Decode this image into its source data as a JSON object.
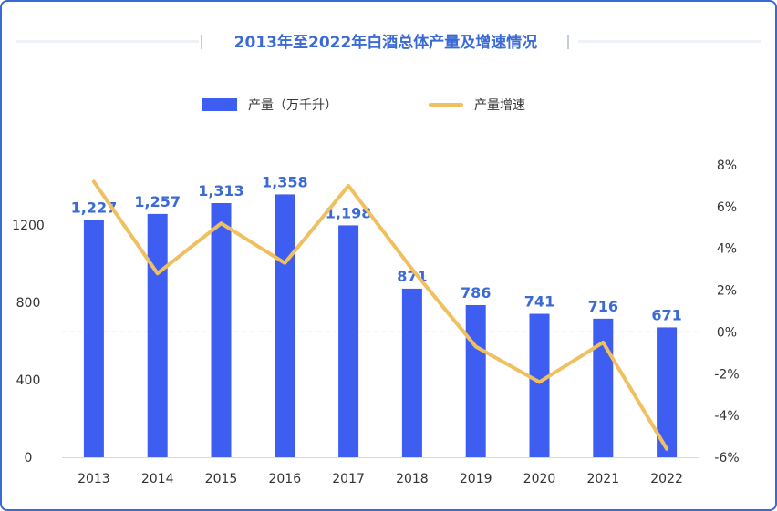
{
  "title": "2013年至2022年白酒总体产量及增速情况",
  "legend": {
    "bar_label": "产量（万千升）",
    "line_label": "产量增速"
  },
  "colors": {
    "border": "#3a6ad6",
    "bar": "#3d5ef0",
    "line": "#f0c060",
    "title": "#3a6ad6"
  },
  "chart_data": {
    "type": "bar+line",
    "title": "2013年至2022年白酒总体产量及增速情况",
    "categories": [
      "2013",
      "2014",
      "2015",
      "2016",
      "2017",
      "2018",
      "2019",
      "2020",
      "2021",
      "2022"
    ],
    "series": [
      {
        "name": "产量（万千升）",
        "type": "bar",
        "axis": "left",
        "values": [
          1227,
          1257,
          1313,
          1358,
          1198,
          871,
          786,
          741,
          716,
          671
        ],
        "value_labels": [
          "1,227",
          "1,257",
          "1,313",
          "1,358",
          "1,198",
          "871",
          "786",
          "741",
          "716",
          "671"
        ]
      },
      {
        "name": "产量增速",
        "type": "line",
        "axis": "right",
        "values": [
          7.2,
          2.8,
          5.2,
          3.3,
          7.0,
          3.0,
          -0.7,
          -2.4,
          -0.5,
          -5.6
        ]
      }
    ],
    "y_left": {
      "ticks": [
        "0",
        "400",
        "800",
        "1200"
      ],
      "tick_values": [
        0,
        400,
        800,
        1200
      ],
      "ylim": [
        0,
        1600
      ]
    },
    "y_right": {
      "ticks": [
        "8%",
        "6%",
        "4%",
        "2%",
        "0%",
        "-2%",
        "-4%",
        "-6%"
      ],
      "tick_values": [
        8,
        6,
        4,
        2,
        0,
        -2,
        -4,
        -6
      ],
      "ylim": [
        -6,
        8
      ]
    },
    "zero_reference_line": true,
    "legend_position": "top",
    "grid": false
  }
}
